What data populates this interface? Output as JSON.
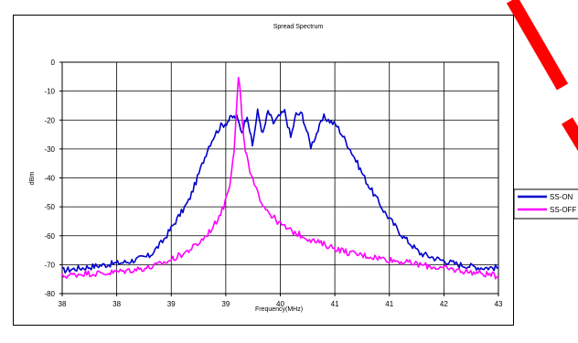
{
  "chart_data": {
    "type": "line",
    "title": "Spread Spectrum",
    "xlabel": "Frequency(MHz)",
    "ylabel": "dBm",
    "xlim": [
      38,
      43
    ],
    "ylim": [
      -80,
      0
    ],
    "x_tick_labels": [
      "38",
      "38",
      "39",
      "39",
      "40",
      "41",
      "41",
      "42",
      "43"
    ],
    "y_tick_labels": [
      "0",
      "-10",
      "-20",
      "-30",
      "-40",
      "-50",
      "-60",
      "-70",
      "-80"
    ],
    "grid": true,
    "legend_position": "right",
    "series": [
      {
        "name": "SS-ON",
        "color": "#0000cc",
        "x": [
          38.0,
          38.25,
          38.5,
          38.75,
          39.0,
          39.15,
          39.3,
          39.45,
          39.55,
          39.62,
          39.68,
          39.75,
          39.82,
          39.88,
          39.94,
          40.0,
          40.06,
          40.12,
          40.18,
          40.24,
          40.3,
          40.36,
          40.42,
          40.48,
          40.55,
          40.62,
          40.68,
          40.75,
          40.85,
          41.0,
          41.15,
          41.3,
          41.5,
          41.7,
          41.9,
          42.1,
          42.3,
          42.55,
          42.8,
          43.0
        ],
        "y": [
          -72,
          -71,
          -70,
          -69,
          -67,
          -62,
          -55,
          -48,
          -40,
          -34,
          -29,
          -25,
          -22,
          -21,
          -19,
          -19,
          -24,
          -18,
          -29,
          -17,
          -25,
          -17,
          -21,
          -19,
          -17,
          -26,
          -18,
          -18,
          -29,
          -19,
          -22,
          -30,
          -42,
          -52,
          -60,
          -66,
          -68,
          -70,
          -71,
          -71
        ]
      },
      {
        "name": "SS-OFF",
        "color": "#ff00ff",
        "x": [
          38.0,
          38.25,
          38.5,
          38.75,
          39.0,
          39.2,
          39.4,
          39.55,
          39.65,
          39.75,
          39.85,
          39.92,
          39.97,
          40.0,
          40.02,
          40.04,
          40.06,
          40.1,
          40.15,
          40.22,
          40.3,
          40.4,
          40.5,
          40.6,
          40.75,
          40.9,
          41.1,
          41.3,
          41.5,
          41.7,
          41.9,
          42.1,
          42.3,
          42.55,
          42.8,
          43.0
        ],
        "y": [
          -74,
          -73,
          -73,
          -72,
          -71,
          -69,
          -66,
          -63,
          -60,
          -56,
          -50,
          -42,
          -30,
          -15,
          -5,
          -10,
          -20,
          -30,
          -38,
          -44,
          -49,
          -53,
          -56,
          -58,
          -60,
          -62,
          -64,
          -66,
          -67,
          -68,
          -69,
          -70,
          -71,
          -72,
          -73,
          -74
        ]
      }
    ]
  }
}
